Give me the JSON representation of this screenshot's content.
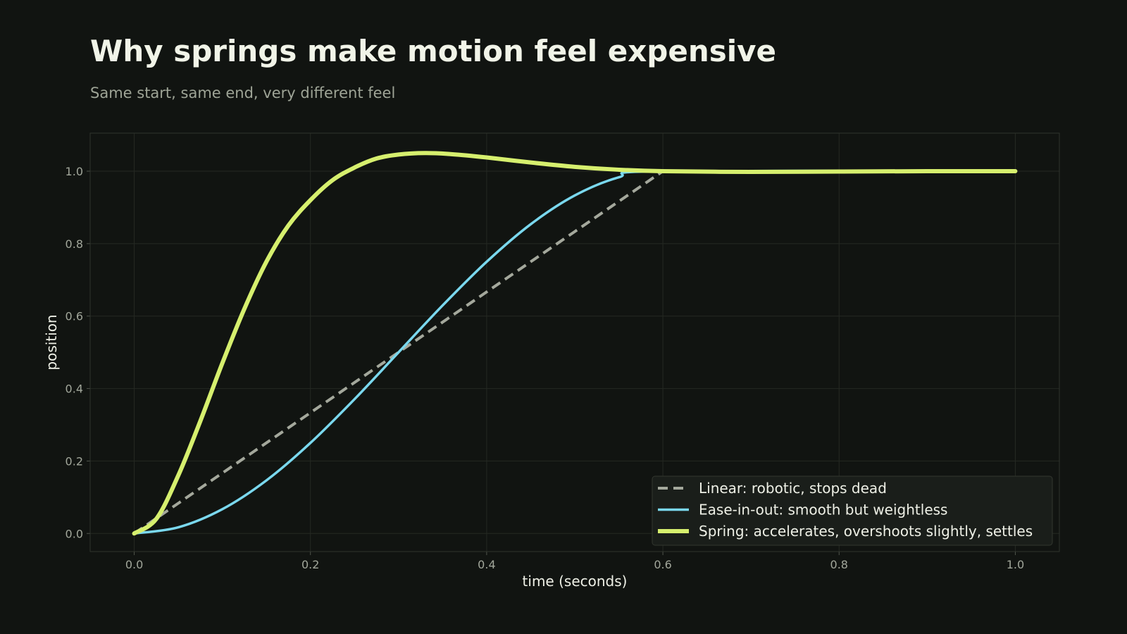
{
  "title": "Why springs make motion feel expensive",
  "subtitle": "Same start, same end, very different feel",
  "chart_data": {
    "type": "line",
    "xlabel": "time (seconds)",
    "ylabel": "position",
    "xlim": [
      -0.05,
      1.05
    ],
    "ylim": [
      -0.05,
      1.105
    ],
    "xticks": [
      0.0,
      0.2,
      0.4,
      0.6,
      0.8,
      1.0
    ],
    "xtick_labels": [
      "0.0",
      "0.2",
      "0.4",
      "0.6",
      "0.8",
      "1.0"
    ],
    "yticks": [
      0.0,
      0.2,
      0.4,
      0.6,
      0.8,
      1.0
    ],
    "ytick_labels": [
      "0.0",
      "0.2",
      "0.4",
      "0.6",
      "0.8",
      "1.0"
    ],
    "grid": true,
    "legend_position": "bottom-right",
    "series": [
      {
        "name": "Linear: robotic, stops dead",
        "color": "#a4a89c",
        "style": "dashed",
        "x": [
          0.0,
          0.1,
          0.2,
          0.3,
          0.4,
          0.5,
          0.6
        ],
        "y": [
          0.0,
          0.1667,
          0.3333,
          0.5,
          0.6667,
          0.8333,
          1.0
        ]
      },
      {
        "name": "Ease-in-out: smooth but weightless",
        "color": "#7ad8ee",
        "style": "solid",
        "x": [
          0.0,
          0.05,
          0.1,
          0.15,
          0.2,
          0.25,
          0.3,
          0.35,
          0.4,
          0.45,
          0.5,
          0.55,
          0.6,
          1.0
        ],
        "y": [
          0.0,
          0.017,
          0.067,
          0.1464,
          0.25,
          0.3706,
          0.5,
          0.6294,
          0.75,
          0.8536,
          0.933,
          0.983,
          1.0,
          1.0
        ]
      },
      {
        "name": "Spring: accelerates, overshoots slightly, settles",
        "color": "#d6ef6e",
        "style": "solid-thick",
        "x": [
          0.0,
          0.025,
          0.05,
          0.075,
          0.1,
          0.125,
          0.15,
          0.175,
          0.2,
          0.225,
          0.25,
          0.275,
          0.3,
          0.33,
          0.36,
          0.4,
          0.45,
          0.5,
          0.55,
          0.6,
          0.7,
          0.8,
          0.9,
          1.0
        ],
        "y": [
          0.0,
          0.04,
          0.16,
          0.31,
          0.47,
          0.62,
          0.75,
          0.85,
          0.92,
          0.975,
          1.01,
          1.035,
          1.046,
          1.05,
          1.047,
          1.038,
          1.024,
          1.012,
          1.004,
          1.0,
          0.998,
          0.999,
          1.0,
          1.0
        ]
      }
    ]
  }
}
